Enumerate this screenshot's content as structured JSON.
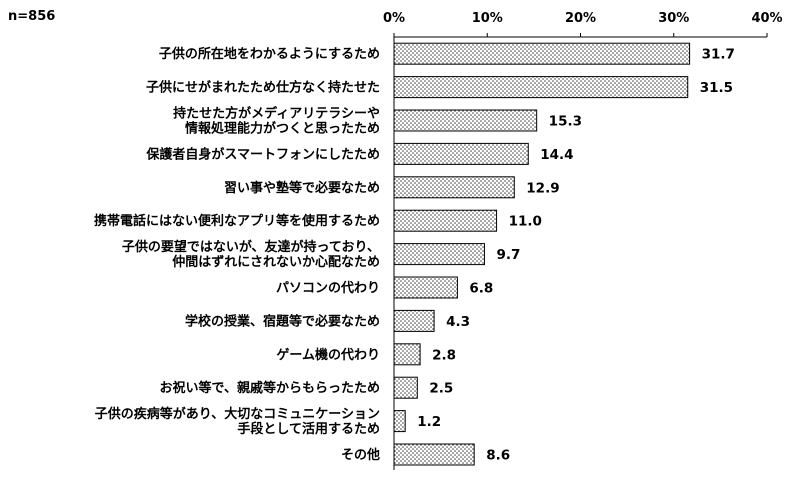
{
  "sample_note": "n=856",
  "chart_data": {
    "type": "bar",
    "orientation": "horizontal",
    "categories": [
      "子供の所在地をわかるようにするため",
      "子供にせがまれたため仕方なく持たせた",
      "持たせた方がメディアリテラシーや\n情報処理能力がつくと思ったため",
      "保護者自身がスマートフォンにしたため",
      "習い事や塾等で必要なため",
      "携帯電話にはない便利なアプリ等を使用するため",
      "子供の要望ではないが、友達が持っており、\n仲間はずれにされないか心配なため",
      "パソコンの代わり",
      "学校の授業、宿題等で必要なため",
      "ゲーム機の代わり",
      "お祝い等で、親戚等からもらったため",
      "子供の疾病等があり、大切なコミュニケーション\n手段として活用するため",
      "その他"
    ],
    "values": [
      31.7,
      31.5,
      15.3,
      14.4,
      12.9,
      11.0,
      9.7,
      6.8,
      4.3,
      2.8,
      2.5,
      1.2,
      8.6
    ],
    "value_labels": [
      "31.7",
      "31.5",
      "15.3",
      "14.4",
      "12.9",
      "11.0",
      "9.7",
      "6.8",
      "4.3",
      "2.8",
      "2.5",
      "1.2",
      "8.6"
    ],
    "xlim": [
      0,
      40
    ],
    "xticks": [
      "0%",
      "10%",
      "20%",
      "30%",
      "40%"
    ],
    "axis_position": "top",
    "grid": false,
    "bar_fill": "dotted pattern",
    "bar_color": "#000000"
  }
}
